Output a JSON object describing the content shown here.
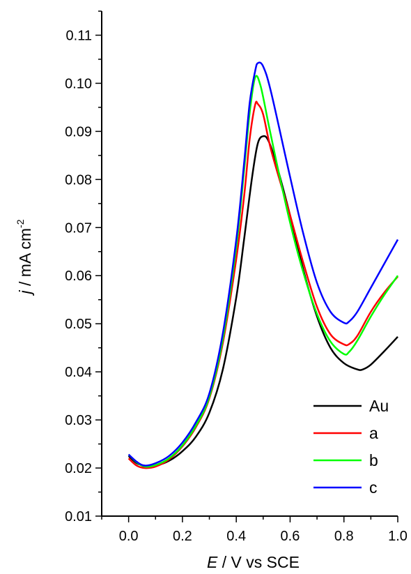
{
  "chart_data": {
    "type": "line",
    "title": "",
    "xlabel": {
      "italic": "E",
      "rest": " / V vs SCE"
    },
    "ylabel": {
      "italic": "j",
      "rest": " / mA cm",
      "sup": "-2"
    },
    "xlim": [
      -0.1,
      1.0
    ],
    "ylim": [
      0.01,
      0.115
    ],
    "xticks": [
      0.0,
      0.2,
      0.4,
      0.6,
      0.8,
      1.0
    ],
    "xtick_labels": [
      "0.0",
      "0.2",
      "0.4",
      "0.6",
      "0.8",
      "1.0"
    ],
    "yticks": [
      0.01,
      0.02,
      0.03,
      0.04,
      0.05,
      0.06,
      0.07,
      0.08,
      0.09,
      0.1,
      0.11
    ],
    "ytick_labels": [
      "0.01",
      "0.02",
      "0.03",
      "0.04",
      "0.05",
      "0.06",
      "0.07",
      "0.08",
      "0.09",
      "0.10",
      "0.11"
    ],
    "grid": false,
    "legend_position": "bottom-right",
    "series": [
      {
        "name": "Au",
        "color": "#000000",
        "points": [
          [
            0.0,
            0.0225
          ],
          [
            0.03,
            0.021
          ],
          [
            0.06,
            0.0205
          ],
          [
            0.1,
            0.0205
          ],
          [
            0.15,
            0.0215
          ],
          [
            0.2,
            0.0235
          ],
          [
            0.25,
            0.0265
          ],
          [
            0.3,
            0.0315
          ],
          [
            0.35,
            0.0405
          ],
          [
            0.4,
            0.0555
          ],
          [
            0.43,
            0.068
          ],
          [
            0.46,
            0.081
          ],
          [
            0.48,
            0.0875
          ],
          [
            0.5,
            0.089
          ],
          [
            0.52,
            0.088
          ],
          [
            0.55,
            0.083
          ],
          [
            0.6,
            0.0725
          ],
          [
            0.65,
            0.061
          ],
          [
            0.7,
            0.0515
          ],
          [
            0.75,
            0.045
          ],
          [
            0.8,
            0.0418
          ],
          [
            0.85,
            0.0405
          ],
          [
            0.87,
            0.0405
          ],
          [
            0.9,
            0.0415
          ],
          [
            0.95,
            0.0443
          ],
          [
            1.0,
            0.0473
          ]
        ]
      },
      {
        "name": "a",
        "color": "#ff0000",
        "points": [
          [
            0.0,
            0.022
          ],
          [
            0.03,
            0.0205
          ],
          [
            0.06,
            0.02
          ],
          [
            0.1,
            0.0203
          ],
          [
            0.15,
            0.0218
          ],
          [
            0.2,
            0.0245
          ],
          [
            0.25,
            0.0285
          ],
          [
            0.3,
            0.0345
          ],
          [
            0.35,
            0.046
          ],
          [
            0.4,
            0.0635
          ],
          [
            0.43,
            0.077
          ],
          [
            0.45,
            0.0885
          ],
          [
            0.47,
            0.0955
          ],
          [
            0.48,
            0.0957
          ],
          [
            0.5,
            0.0935
          ],
          [
            0.53,
            0.086
          ],
          [
            0.6,
            0.0725
          ],
          [
            0.65,
            0.0625
          ],
          [
            0.7,
            0.0535
          ],
          [
            0.75,
            0.0478
          ],
          [
            0.8,
            0.0457
          ],
          [
            0.82,
            0.0458
          ],
          [
            0.85,
            0.0475
          ],
          [
            0.9,
            0.0525
          ],
          [
            0.95,
            0.0565
          ],
          [
            1.0,
            0.0598
          ]
        ]
      },
      {
        "name": "b",
        "color": "#00ff00",
        "points": [
          [
            0.0,
            0.0228
          ],
          [
            0.03,
            0.0212
          ],
          [
            0.06,
            0.0203
          ],
          [
            0.1,
            0.0206
          ],
          [
            0.15,
            0.022
          ],
          [
            0.2,
            0.0247
          ],
          [
            0.25,
            0.0288
          ],
          [
            0.3,
            0.0348
          ],
          [
            0.35,
            0.0468
          ],
          [
            0.4,
            0.066
          ],
          [
            0.43,
            0.0825
          ],
          [
            0.45,
            0.094
          ],
          [
            0.47,
            0.1012
          ],
          [
            0.49,
            0.0995
          ],
          [
            0.52,
            0.0915
          ],
          [
            0.55,
            0.0835
          ],
          [
            0.6,
            0.071
          ],
          [
            0.65,
            0.0605
          ],
          [
            0.7,
            0.052
          ],
          [
            0.75,
            0.0463
          ],
          [
            0.8,
            0.0437
          ],
          [
            0.82,
            0.0442
          ],
          [
            0.85,
            0.0465
          ],
          [
            0.9,
            0.0515
          ],
          [
            0.95,
            0.056
          ],
          [
            1.0,
            0.06
          ]
        ]
      },
      {
        "name": "c",
        "color": "#0000ff",
        "points": [
          [
            0.0,
            0.0228
          ],
          [
            0.03,
            0.0213
          ],
          [
            0.06,
            0.0205
          ],
          [
            0.1,
            0.021
          ],
          [
            0.15,
            0.0225
          ],
          [
            0.2,
            0.0253
          ],
          [
            0.25,
            0.0295
          ],
          [
            0.3,
            0.0355
          ],
          [
            0.35,
            0.048
          ],
          [
            0.4,
            0.0675
          ],
          [
            0.43,
            0.084
          ],
          [
            0.45,
            0.096
          ],
          [
            0.47,
            0.1025
          ],
          [
            0.48,
            0.1042
          ],
          [
            0.5,
            0.1035
          ],
          [
            0.53,
            0.098
          ],
          [
            0.6,
            0.0805
          ],
          [
            0.65,
            0.0685
          ],
          [
            0.7,
            0.0585
          ],
          [
            0.75,
            0.0525
          ],
          [
            0.8,
            0.0502
          ],
          [
            0.82,
            0.0505
          ],
          [
            0.85,
            0.0525
          ],
          [
            0.9,
            0.0575
          ],
          [
            0.95,
            0.0625
          ],
          [
            1.0,
            0.0675
          ]
        ]
      }
    ]
  }
}
